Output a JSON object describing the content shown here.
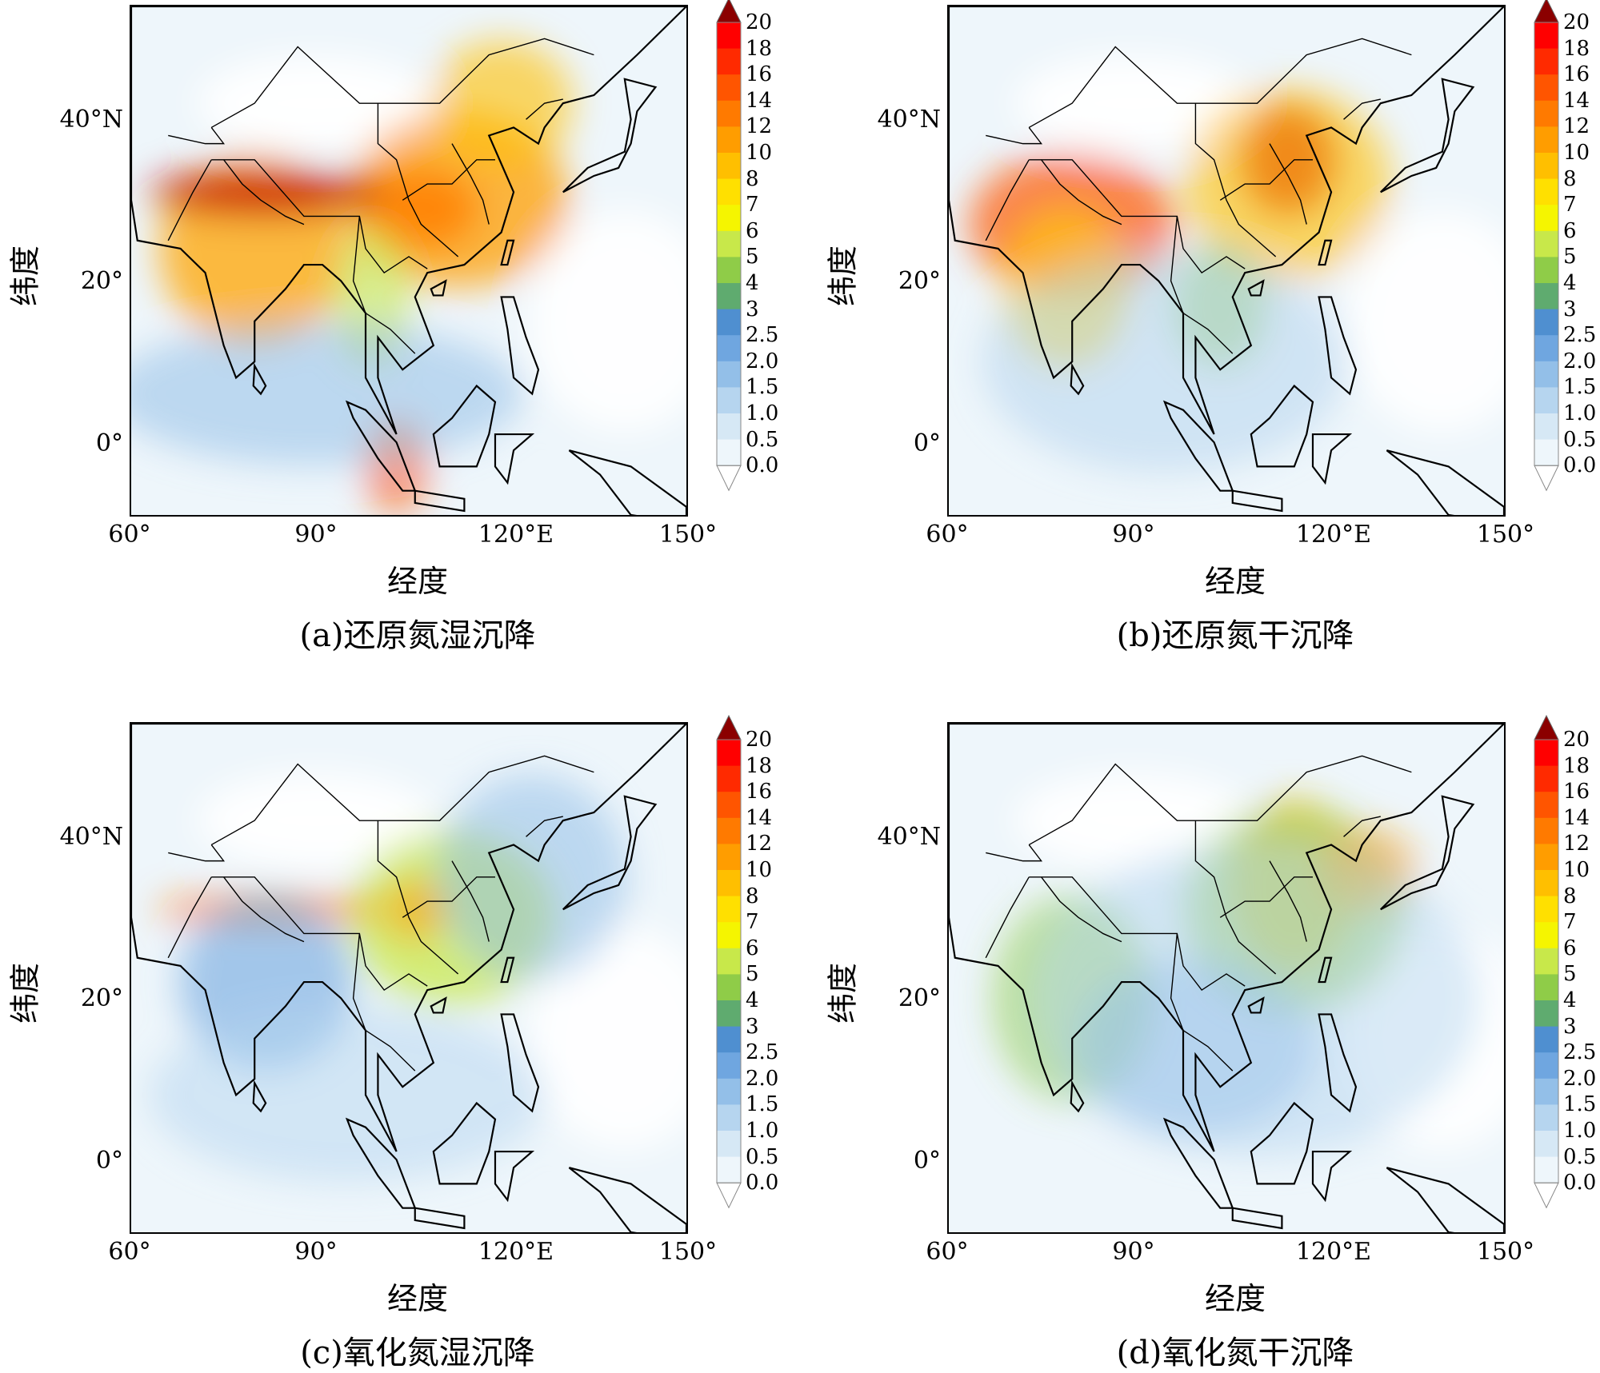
{
  "colorbar": {
    "labels": [
      "20",
      "18",
      "16",
      "14",
      "12",
      "10",
      "8",
      "7",
      "6",
      "5",
      "4",
      "3",
      "2.5",
      "2.0",
      "1.5",
      "1.0",
      "0.5",
      "0.0"
    ],
    "colors": [
      "#ff0000",
      "#ff2a00",
      "#ff5500",
      "#ff7a00",
      "#ff9d00",
      "#ffbf00",
      "#ffe000",
      "#f5f500",
      "#c8e84a",
      "#8fcc48",
      "#5fab6f",
      "#4f8fd0",
      "#6fa6e0",
      "#93bfe8",
      "#b6d5ef",
      "#d6e8f5",
      "#eef6fb"
    ],
    "top_color": "#8b0000",
    "bottom_color": "#ffffff"
  },
  "axes": {
    "x_ticks": [
      "60°",
      "90°",
      "120°E",
      "150°"
    ],
    "y_ticks": [
      "40°N",
      "20°",
      "0°"
    ],
    "xlabel": "经度",
    "ylabel": "纬度"
  },
  "panels": [
    {
      "caption": "(a)还原氮湿沉降",
      "map_icon": "wet-nhx-deposition-map"
    },
    {
      "caption": "(b)还原氮干沉降",
      "map_icon": "dry-nhx-deposition-map"
    },
    {
      "caption": "(c)氧化氮湿沉降",
      "map_icon": "wet-noy-deposition-map"
    },
    {
      "caption": "(d)氧化氮干沉降",
      "map_icon": "dry-noy-deposition-map"
    }
  ]
}
